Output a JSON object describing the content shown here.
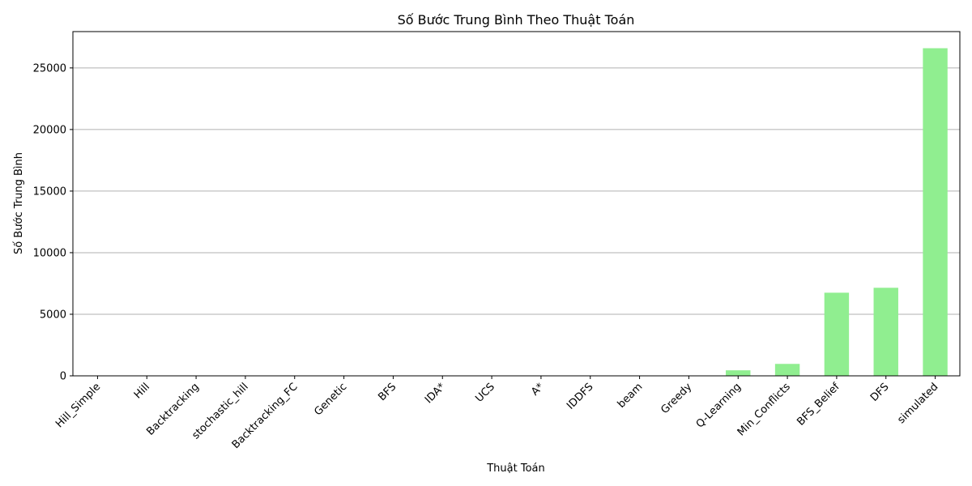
{
  "chart_data": {
    "type": "bar",
    "title": "Số Bước Trung Bình Theo Thuật Toán",
    "xlabel": "Thuật Toán",
    "ylabel": "Số Bước Trung Bình",
    "categories": [
      "Hill_Simple",
      "Hill",
      "Backtracking",
      "stochastic_hill",
      "Backtracking_FC",
      "Genetic",
      "BFS",
      "IDA*",
      "UCS",
      "A*",
      "IDDFS",
      "beam",
      "Greedy",
      "Q-Learning",
      "Min_Conflicts",
      "BFS_Belief",
      "DFS",
      "simulated"
    ],
    "values": [
      3,
      4,
      6,
      8,
      10,
      25,
      30,
      30,
      30,
      30,
      30,
      30,
      30,
      450,
      970,
      6750,
      7150,
      26600
    ],
    "ylim": [
      0,
      27950
    ],
    "yticks": [
      0,
      5000,
      10000,
      15000,
      20000,
      25000
    ],
    "grid": "y",
    "bar_color": "#90ee90"
  }
}
